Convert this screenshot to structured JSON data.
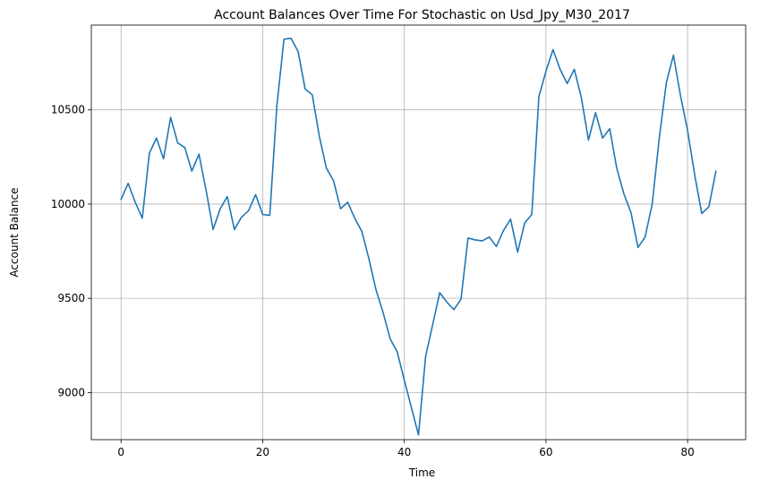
{
  "chart_data": {
    "type": "line",
    "title": "Account Balances Over Time For Stochastic on Usd_Jpy_M30_2017",
    "xlabel": "Time",
    "ylabel": "Account Balance",
    "xlim": [
      -4.2,
      88.2
    ],
    "ylim": [
      8750,
      10950
    ],
    "xticks": [
      0,
      20,
      40,
      60,
      80
    ],
    "yticks": [
      9000,
      9500,
      10000,
      10500
    ],
    "grid": true,
    "colors": {
      "line": "#1f77b4"
    },
    "series": [
      {
        "x": [
          0,
          1,
          2,
          3,
          4,
          5,
          6,
          7,
          8,
          9,
          10,
          11,
          12,
          13,
          14,
          15,
          16,
          17,
          18,
          19,
          20,
          21,
          22,
          23,
          24,
          25,
          26,
          27,
          28,
          29,
          30,
          31,
          32,
          33,
          34,
          35,
          36,
          37,
          38,
          39,
          40,
          41,
          42,
          43,
          44,
          45,
          46,
          47,
          48,
          49,
          50,
          51,
          52,
          53,
          54,
          55,
          56,
          57,
          58,
          59,
          60,
          61,
          62,
          63,
          64,
          65,
          66,
          67,
          68,
          69,
          70,
          71,
          72,
          73,
          74,
          75,
          76,
          77,
          78,
          79,
          80,
          81,
          82,
          83,
          84
        ],
        "values": [
          10025,
          10110,
          10010,
          9925,
          10270,
          10350,
          10240,
          10460,
          10325,
          10300,
          10175,
          10265,
          10075,
          9865,
          9975,
          10040,
          9865,
          9930,
          9965,
          10050,
          9945,
          9940,
          10520,
          10875,
          10880,
          10810,
          10610,
          10580,
          10360,
          10190,
          10125,
          9975,
          10010,
          9925,
          9855,
          9710,
          9545,
          9425,
          9285,
          9215,
          9065,
          8920,
          8775,
          9190,
          9360,
          9530,
          9480,
          9440,
          9495,
          9820,
          9810,
          9805,
          9825,
          9775,
          9860,
          9920,
          9745,
          9900,
          9945,
          10570,
          10705,
          10820,
          10715,
          10640,
          10715,
          10565,
          10340,
          10485,
          10350,
          10400,
          10190,
          10055,
          9955,
          9770,
          9825,
          10000,
          10350,
          10645,
          10790,
          10575,
          10390,
          10155,
          9950,
          9985,
          10175
        ]
      }
    ]
  }
}
